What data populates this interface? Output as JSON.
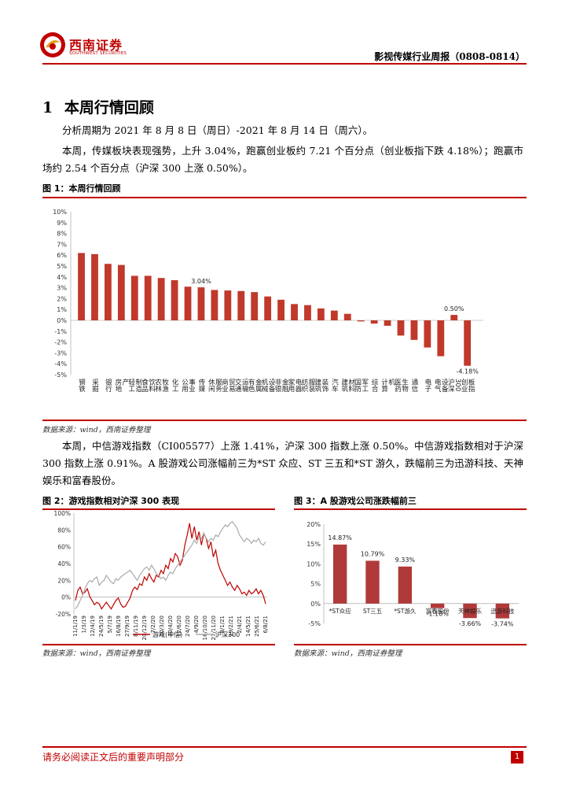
{
  "header": {
    "logo_cn": "西南证券",
    "logo_en": "SOUTHWEST SECURITIES",
    "report_title": "影视传媒行业周报（0808-0814）"
  },
  "section": {
    "number": "1",
    "title": "本周行情回顾"
  },
  "paragraphs": {
    "p1": "分析周期为 2021 年 8 月 8 日（周日）-2021 年 8 月 14 日（周六）。",
    "p2": "本周，传媒板块表现强势，上升 3.04%，跑赢创业板约 7.21 个百分点（创业板指下跌 4.18%）；跑赢市场约 2.54 个百分点（沪深 300 上涨 0.50%）。",
    "p3": "本周，中信游戏指数（CI005577）上涨 1.41%，沪深 300 指数上涨 0.50%。中信游戏指数相对于沪深 300 指数上涨 0.91%。A 股游戏公司涨幅前三为*ST 众应、ST 三五和*ST 游久，跌幅前三为迅游科技、天神娱乐和富春股份。"
  },
  "fig1": {
    "label": "图 1：本周行情回顾",
    "source": "数据来源：wind，西南证券整理"
  },
  "fig2": {
    "label": "图 2：游戏指数相对沪深 300 表现",
    "source": "数据来源：wind，西南证券整理"
  },
  "fig3": {
    "label": "图 3：A 股游戏公司涨跌幅前三",
    "source": "数据来源：wind，西南证券整理"
  },
  "footer": {
    "disclaimer": "请务必阅读正文后的重要声明部分",
    "page": "1"
  },
  "colors": {
    "brand_red": "#c00000",
    "bar_red": "#c0392b",
    "bar_dark_red": "#b03a3a",
    "line_gray": "#aaaaaa"
  },
  "chart_data": [
    {
      "type": "bar",
      "title": "本周行情回顾",
      "ylim": [
        -5,
        10
      ],
      "yticks": [
        "10%",
        "9%",
        "8%",
        "7%",
        "6%",
        "5%",
        "4%",
        "3%",
        "2%",
        "1%",
        "0%",
        "-1%",
        "-2%",
        "-3%",
        "-4%",
        "-5%"
      ],
      "categories": [
        "钢铁",
        "采掘",
        "银行",
        "房地产",
        "轻工制造",
        "食品饮料",
        "农林牧渔",
        "化工",
        "公用事业",
        "传媒",
        "休闲服务",
        "商业贸易",
        "交通运输",
        "有色金属",
        "机械设备",
        "非银金融",
        "家用电器",
        "纺织服装",
        "建筑装饰",
        "汽车",
        "建筑材料",
        "国防军工",
        "综合",
        "计算机",
        "医药生物",
        "通信",
        "电子",
        "电气设备",
        "沪深300",
        "创业板指"
      ],
      "values": [
        6.2,
        6.1,
        5.2,
        5.1,
        4.1,
        4.1,
        3.9,
        3.7,
        3.1,
        3.04,
        2.8,
        2.75,
        2.7,
        2.6,
        2.2,
        1.9,
        1.5,
        1.4,
        1.1,
        0.9,
        0.6,
        -0.1,
        -0.3,
        -0.5,
        -1.4,
        -1.8,
        -2.5,
        -3.3,
        0.5,
        -4.18
      ],
      "data_labels": {
        "传媒": "3.04%",
        "沪深300": "0.50%",
        "创业板指": "-4.18%"
      }
    },
    {
      "type": "line",
      "title": "游戏指数相对沪深 300 表现",
      "ylim": [
        -20,
        100
      ],
      "yticks": [
        "100%",
        "80%",
        "60%",
        "40%",
        "20%",
        "0%",
        "-20%"
      ],
      "x_labels": [
        "11/1/19",
        "1/3/19",
        "12/4/19",
        "24/5/19",
        "5/7/19",
        "16/8/19",
        "27/9/19",
        "8/11/19",
        "20/12/19",
        "7/2/20",
        "20/3/20",
        "30/4/20",
        "12/6/20",
        "24/7/20",
        "4/9/20",
        "16/10/20",
        "27/11/20",
        "8/1/21",
        "19/2/21",
        "2/4/21",
        "14/5/21",
        "25/6/21",
        "6/8/21"
      ],
      "series": [
        {
          "name": "游戏(中信)",
          "values": [
            -4,
            8,
            12,
            4,
            6,
            10,
            1,
            -4,
            -9,
            -6,
            -8,
            -14,
            -10,
            -6,
            -10,
            -14,
            -9,
            -4,
            -1,
            -8,
            -12,
            -11,
            -6,
            -1,
            8,
            12,
            9,
            16,
            14,
            24,
            20,
            28,
            22,
            18,
            26,
            24,
            32,
            28,
            38,
            34,
            46,
            42,
            52,
            48,
            38,
            44,
            62,
            74,
            88,
            70,
            84,
            68,
            78,
            62,
            76,
            70,
            58,
            66,
            48,
            56,
            40,
            32,
            26,
            20,
            14,
            18,
            12,
            8,
            14,
            10,
            4,
            6,
            2,
            8,
            4,
            6,
            10,
            4,
            8,
            2,
            -8
          ]
        },
        {
          "name": "沪深300",
          "values": [
            -14,
            -10,
            -4,
            2,
            10,
            16,
            20,
            18,
            22,
            24,
            14,
            18,
            20,
            26,
            22,
            18,
            16,
            22,
            20,
            24,
            26,
            28,
            30,
            32,
            28,
            24,
            20,
            26,
            30,
            34,
            36,
            32,
            38,
            34,
            28,
            26,
            22,
            24,
            20,
            26,
            30,
            28,
            34,
            38,
            42,
            46,
            50,
            54,
            58,
            62,
            68,
            64,
            72,
            70,
            76,
            70,
            66,
            70,
            68,
            74,
            72,
            78,
            82,
            86,
            84,
            88,
            90,
            86,
            82,
            74,
            70,
            66,
            70,
            68,
            64,
            68,
            66,
            70,
            64,
            62,
            66
          ]
        }
      ]
    },
    {
      "type": "bar",
      "title": "A 股游戏公司涨跌幅前三",
      "ylim": [
        -5,
        20
      ],
      "yticks": [
        "20%",
        "15%",
        "10%",
        "5%",
        "0%",
        "-5%"
      ],
      "categories": [
        "*ST众应",
        "ST三五",
        "*ST游久",
        "富春股份",
        "天神娱乐",
        "迅游科技"
      ],
      "values": [
        14.87,
        10.79,
        9.33,
        -1.16,
        -3.66,
        -3.74
      ],
      "data_labels": [
        "14.87%",
        "10.79%",
        "9.33%",
        "-1.16%",
        "-3.66%",
        "-3.74%"
      ]
    }
  ]
}
